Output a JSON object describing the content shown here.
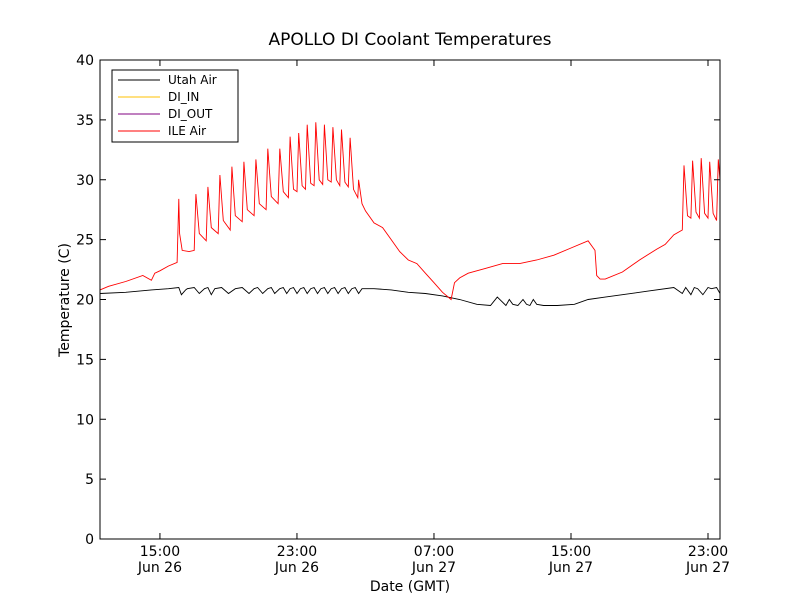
{
  "chart_data": {
    "type": "line",
    "title": "APOLLO DI Coolant Temperatures",
    "xlabel": "Date (GMT)",
    "ylabel": "Temperature (C)",
    "xlim_hours": [
      11.5,
      47.7
    ],
    "ylim": [
      0,
      40
    ],
    "yticks": [
      0,
      5,
      10,
      15,
      20,
      25,
      30,
      35,
      40
    ],
    "xticks": [
      {
        "hour": 15,
        "line1": "15:00",
        "line2": "Jun 26"
      },
      {
        "hour": 23,
        "line1": "23:00",
        "line2": "Jun 26"
      },
      {
        "hour": 31,
        "line1": "07:00",
        "line2": "Jun 27"
      },
      {
        "hour": 39,
        "line1": "15:00",
        "line2": "Jun 27"
      },
      {
        "hour": 47,
        "line1": "23:00",
        "line2": "Jun 27"
      }
    ],
    "x_unit_note": "x values are hours since Jun 26 00:00 GMT",
    "legend_location": "upper-left",
    "grid": false,
    "series": [
      {
        "name": "Utah Air",
        "color": "#000000",
        "x": [
          11.5,
          13.0,
          14.5,
          15.5,
          16.1,
          16.25,
          16.5,
          16.6,
          17.0,
          17.3,
          17.6,
          17.8,
          18.0,
          18.2,
          18.6,
          19.0,
          19.4,
          19.8,
          20.2,
          20.5,
          20.7,
          21.0,
          21.3,
          21.5,
          21.7,
          22.0,
          22.2,
          22.4,
          22.6,
          22.8,
          23.0,
          23.2,
          23.4,
          23.6,
          23.8,
          24.0,
          24.2,
          24.4,
          24.6,
          24.8,
          25.0,
          25.2,
          25.4,
          25.6,
          25.8,
          26.0,
          26.2,
          26.4,
          26.6,
          26.8,
          27.0,
          27.5,
          28.5,
          29.5,
          30.5,
          31.5,
          32.5,
          33.5,
          34.3,
          34.7,
          35.2,
          35.4,
          35.6,
          35.9,
          36.2,
          36.4,
          36.6,
          36.8,
          37.0,
          37.4,
          38.2,
          39.2,
          40.0,
          41.0,
          42.0,
          43.5,
          45.0,
          45.5,
          45.7,
          46.0,
          46.2,
          46.4,
          46.7,
          47.0,
          47.2,
          47.5,
          47.7
        ],
        "y": [
          20.5,
          20.6,
          20.8,
          20.9,
          21.0,
          20.4,
          20.8,
          20.9,
          21.0,
          20.5,
          20.9,
          21.0,
          20.4,
          20.9,
          21.0,
          20.5,
          20.9,
          21.0,
          20.5,
          20.9,
          21.0,
          20.5,
          20.9,
          21.0,
          20.5,
          20.9,
          21.0,
          20.5,
          20.9,
          21.0,
          20.5,
          20.9,
          21.0,
          20.5,
          20.9,
          21.0,
          20.5,
          20.9,
          21.0,
          20.5,
          20.9,
          21.0,
          20.5,
          20.9,
          21.0,
          20.5,
          20.9,
          21.0,
          20.5,
          20.9,
          20.9,
          20.9,
          20.8,
          20.6,
          20.5,
          20.3,
          20.0,
          19.6,
          19.5,
          20.2,
          19.5,
          20.0,
          19.6,
          19.5,
          20.0,
          19.6,
          19.5,
          20.0,
          19.6,
          19.5,
          19.5,
          19.6,
          20.0,
          20.2,
          20.4,
          20.7,
          21.0,
          20.5,
          21.0,
          20.4,
          21.0,
          20.9,
          20.4,
          21.0,
          20.9,
          21.0,
          20.5
        ]
      },
      {
        "name": "DI_IN",
        "color": "#ffc000",
        "x": [],
        "y": []
      },
      {
        "name": "DI_OUT",
        "color": "#800080",
        "x": [],
        "y": []
      },
      {
        "name": "ILE Air",
        "color": "#ff0000",
        "x": [
          11.5,
          12.0,
          13.0,
          14.0,
          14.5,
          14.7,
          15.0,
          15.5,
          16.0,
          16.1,
          16.15,
          16.3,
          16.7,
          17.0,
          17.1,
          17.3,
          17.7,
          17.8,
          18.0,
          18.4,
          18.5,
          18.7,
          19.1,
          19.2,
          19.4,
          19.8,
          19.9,
          20.1,
          20.5,
          20.6,
          20.8,
          21.2,
          21.3,
          21.5,
          21.9,
          22.0,
          22.2,
          22.5,
          22.6,
          22.8,
          23.0,
          23.1,
          23.3,
          23.5,
          23.6,
          23.8,
          24.0,
          24.1,
          24.3,
          24.5,
          24.6,
          24.8,
          25.0,
          25.1,
          25.3,
          25.5,
          25.6,
          25.8,
          26.0,
          26.1,
          26.3,
          26.55,
          26.6,
          26.8,
          27.0,
          27.5,
          28.0,
          28.5,
          29.0,
          29.5,
          30.0,
          30.5,
          31.0,
          31.5,
          32.0,
          32.2,
          32.5,
          33.0,
          34.0,
          35.0,
          36.0,
          37.0,
          38.0,
          39.0,
          40.0,
          40.4,
          40.5,
          40.7,
          41.0,
          42.0,
          43.0,
          44.0,
          44.5,
          45.0,
          45.5,
          45.6,
          45.8,
          46.0,
          46.1,
          46.3,
          46.5,
          46.6,
          46.8,
          47.0,
          47.1,
          47.3,
          47.5,
          47.6,
          47.7
        ],
        "y": [
          20.8,
          21.1,
          21.5,
          22.0,
          21.6,
          22.2,
          22.4,
          22.8,
          23.1,
          28.4,
          25.5,
          24.1,
          24.0,
          24.1,
          28.8,
          25.5,
          24.9,
          29.4,
          26.0,
          25.5,
          30.4,
          26.6,
          25.8,
          31.1,
          27.0,
          26.5,
          31.5,
          27.5,
          27.0,
          31.7,
          28.0,
          27.5,
          32.6,
          28.6,
          28.0,
          32.6,
          29.0,
          28.5,
          33.6,
          29.2,
          29.0,
          33.9,
          29.5,
          29.2,
          34.6,
          29.7,
          29.5,
          34.8,
          30.0,
          29.6,
          34.6,
          30.0,
          29.8,
          34.4,
          30.0,
          29.5,
          34.2,
          29.8,
          29.4,
          33.5,
          29.2,
          28.5,
          30.0,
          28.0,
          27.4,
          26.4,
          26.0,
          25.0,
          24.0,
          23.3,
          23.0,
          22.2,
          21.4,
          20.6,
          20.0,
          21.4,
          21.8,
          22.2,
          22.6,
          23.0,
          23.0,
          23.3,
          23.7,
          24.3,
          24.9,
          24.1,
          22.0,
          21.7,
          21.7,
          22.3,
          23.3,
          24.2,
          24.6,
          25.4,
          25.8,
          31.2,
          27.0,
          26.8,
          31.6,
          27.3,
          26.8,
          31.8,
          27.2,
          26.8,
          31.5,
          27.2,
          26.6,
          31.7,
          30.0
        ]
      }
    ]
  }
}
